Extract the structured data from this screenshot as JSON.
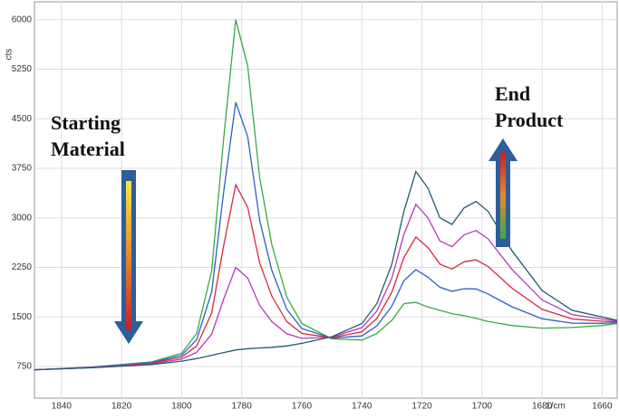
{
  "chart_data": {
    "type": "line",
    "x": [
      1849,
      1830,
      1810,
      1800,
      1795,
      1790,
      1786,
      1782,
      1778,
      1774,
      1770,
      1765,
      1760,
      1750,
      1740,
      1735,
      1730,
      1726,
      1722,
      1718,
      1714,
      1710,
      1706,
      1702,
      1698,
      1694,
      1690,
      1680,
      1670,
      1660,
      1655
    ],
    "series": [
      {
        "name": "Starting Material",
        "color": "#3aa84a",
        "values": [
          700,
          740,
          820,
          950,
          1250,
          2200,
          4200,
          6000,
          5300,
          3600,
          2600,
          1800,
          1400,
          1170,
          1150,
          1250,
          1450,
          1700,
          1720,
          1650,
          1600,
          1550,
          1520,
          1480,
          1430,
          1400,
          1370,
          1330,
          1340,
          1370,
          1400
        ]
      },
      {
        "color": "#2b5fc9",
        "values": [
          700,
          738,
          810,
          920,
          1155,
          1880,
          3390,
          4750,
          4230,
          2958,
          2210,
          1615,
          1325,
          1178,
          1213,
          1363,
          1663,
          2050,
          2215,
          2100,
          1950,
          1888,
          1928,
          1923,
          1848,
          1750,
          1653,
          1473,
          1405,
          1403,
          1413
        ]
      },
      {
        "color": "#d62a3a",
        "values": [
          700,
          735,
          800,
          890,
          1060,
          1560,
          2580,
          3500,
          3160,
          2315,
          1820,
          1430,
          1250,
          1185,
          1275,
          1475,
          1875,
          2400,
          2710,
          2550,
          2300,
          2225,
          2335,
          2365,
          2265,
          2100,
          1935,
          1615,
          1470,
          1435,
          1425
        ]
      },
      {
        "color": "#b23ab8",
        "values": [
          700,
          733,
          790,
          860,
          965,
          1240,
          1770,
          2250,
          2090,
          1673,
          1430,
          1245,
          1175,
          1193,
          1338,
          1588,
          2088,
          2750,
          3205,
          3000,
          2650,
          2563,
          2743,
          2808,
          2683,
          2450,
          2218,
          1758,
          1535,
          1468,
          1438
        ]
      },
      {
        "name": "End Product",
        "color": "#1f5c6e",
        "values": [
          700,
          730,
          780,
          830,
          870,
          920,
          960,
          1000,
          1020,
          1030,
          1040,
          1060,
          1100,
          1200,
          1400,
          1700,
          2300,
          3100,
          3700,
          3450,
          3000,
          2900,
          3150,
          3250,
          3100,
          2800,
          2500,
          1900,
          1600,
          1500,
          1450
        ]
      }
    ],
    "xlim": [
      1849,
      1655
    ],
    "ylim": [
      270,
      6270
    ],
    "xticks": [
      1840,
      1820,
      1800,
      1780,
      1760,
      1740,
      1720,
      1700,
      1680,
      1660
    ],
    "yticks": [
      750,
      1500,
      2250,
      3000,
      3750,
      4500,
      5250,
      6000
    ],
    "x_unit": "1/cm",
    "y_unit": "cts",
    "annotations": {
      "start": [
        "Starting",
        "Material"
      ],
      "end": [
        "End",
        "Product"
      ]
    }
  }
}
